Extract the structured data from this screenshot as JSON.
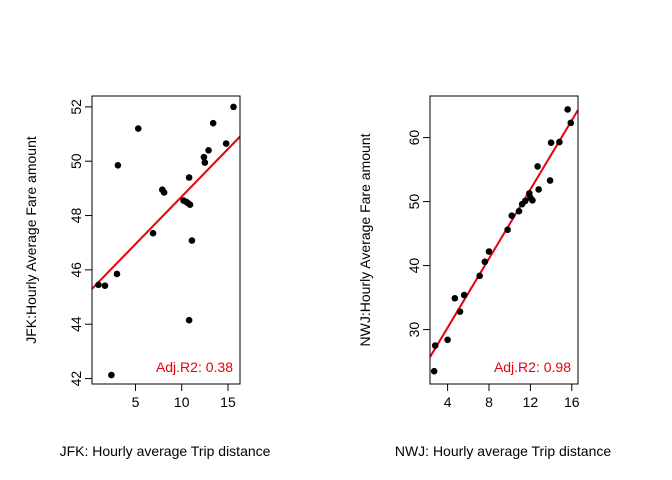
{
  "chart_data": [
    {
      "type": "scatter",
      "xlabel": "JFK: Hourly average Trip distance",
      "ylabel": "JFK:Hourly Average Fare amount",
      "xlim": [
        0.3,
        16.3
      ],
      "ylim": [
        41.8,
        52.4
      ],
      "xticks": [
        5,
        10,
        15
      ],
      "yticks": [
        42,
        44,
        46,
        48,
        50,
        52
      ],
      "points": [
        {
          "x": 1.0,
          "y": 45.45
        },
        {
          "x": 1.7,
          "y": 45.42
        },
        {
          "x": 2.4,
          "y": 42.13
        },
        {
          "x": 3.0,
          "y": 45.85
        },
        {
          "x": 3.1,
          "y": 49.85
        },
        {
          "x": 5.3,
          "y": 51.2
        },
        {
          "x": 6.9,
          "y": 47.35
        },
        {
          "x": 7.9,
          "y": 48.95
        },
        {
          "x": 8.1,
          "y": 48.85
        },
        {
          "x": 10.2,
          "y": 48.55
        },
        {
          "x": 10.5,
          "y": 48.5
        },
        {
          "x": 10.7,
          "y": 48.45
        },
        {
          "x": 10.9,
          "y": 48.4
        },
        {
          "x": 10.8,
          "y": 49.4
        },
        {
          "x": 10.8,
          "y": 44.15
        },
        {
          "x": 11.1,
          "y": 47.08
        },
        {
          "x": 12.4,
          "y": 50.15
        },
        {
          "x": 12.5,
          "y": 49.95
        },
        {
          "x": 12.9,
          "y": 50.4
        },
        {
          "x": 13.4,
          "y": 51.4
        },
        {
          "x": 14.8,
          "y": 50.65
        },
        {
          "x": 15.6,
          "y": 52.0
        }
      ],
      "fit": {
        "intercept": 45.2,
        "slope": 0.35
      },
      "fit_color": "#e8000b",
      "point_color": "#000000",
      "annotation": {
        "text": "Adj.R2: 0.38",
        "color": "#e8000b"
      }
    },
    {
      "type": "scatter",
      "xlabel": "NWJ: Hourly average Trip distance",
      "ylabel": "NWJ:Hourly Average Fare amount",
      "xlim": [
        2.3,
        16.6
      ],
      "ylim": [
        21.5,
        66.5
      ],
      "xticks": [
        4,
        8,
        12,
        16
      ],
      "yticks": [
        30,
        40,
        50,
        60
      ],
      "points": [
        {
          "x": 2.7,
          "y": 23.5
        },
        {
          "x": 2.8,
          "y": 27.5
        },
        {
          "x": 4.0,
          "y": 28.4
        },
        {
          "x": 4.7,
          "y": 34.9
        },
        {
          "x": 5.2,
          "y": 32.8
        },
        {
          "x": 5.6,
          "y": 35.4
        },
        {
          "x": 7.1,
          "y": 38.4
        },
        {
          "x": 7.6,
          "y": 40.6
        },
        {
          "x": 8.0,
          "y": 42.2
        },
        {
          "x": 9.8,
          "y": 45.6
        },
        {
          "x": 10.2,
          "y": 47.8
        },
        {
          "x": 10.9,
          "y": 48.5
        },
        {
          "x": 11.2,
          "y": 49.6
        },
        {
          "x": 11.5,
          "y": 50.1
        },
        {
          "x": 11.9,
          "y": 51.3
        },
        {
          "x": 12.0,
          "y": 50.6
        },
        {
          "x": 12.2,
          "y": 50.2
        },
        {
          "x": 12.7,
          "y": 55.5
        },
        {
          "x": 12.8,
          "y": 51.9
        },
        {
          "x": 13.9,
          "y": 53.3
        },
        {
          "x": 14.0,
          "y": 59.2
        },
        {
          "x": 14.8,
          "y": 59.3
        },
        {
          "x": 15.6,
          "y": 64.4
        },
        {
          "x": 15.9,
          "y": 62.3
        }
      ],
      "fit": {
        "intercept": 19.5,
        "slope": 2.7
      },
      "fit_color": "#e8000b",
      "point_color": "#000000",
      "annotation": {
        "text": "Adj.R2: 0.98",
        "color": "#e8000b"
      }
    }
  ]
}
